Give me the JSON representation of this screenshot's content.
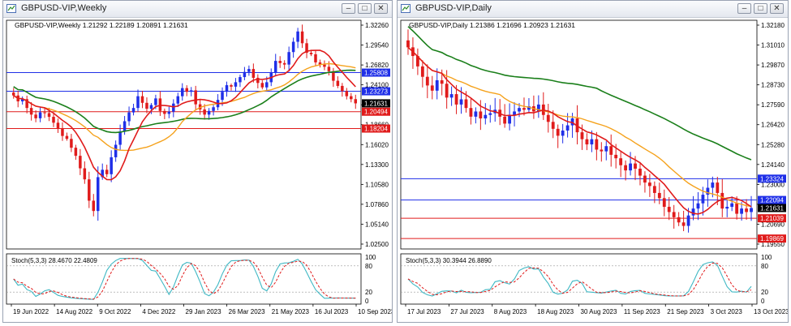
{
  "windows": [
    {
      "id": "weekly",
      "title": "GBPUSD-VIP,Weekly",
      "info": "GBPUSD-VIP,Weekly  1.21292 1.22189 1.20891 1.21631",
      "osc_label": "Stoch(5,3,3) 28.4670 22.4809",
      "colors": {
        "bull": "#1f2fe8",
        "bear": "#e01b1b",
        "ma_fast": "#e01b1b",
        "ma_mid": "#f5a21c",
        "ma_slow": "#1a7f1a",
        "stoch_main": "#3fb8c4",
        "stoch_signal": "#e01b1b",
        "hline_blue": "#1f2fe8",
        "hline_red": "#e01b1b"
      },
      "chart_data": {
        "type": "candlestick",
        "y_ticks": [
          "1.32260",
          "1.29540",
          "1.26820",
          "1.24100",
          "1.21380",
          "1.18660",
          "1.16020",
          "1.13300",
          "1.10580",
          "1.07860",
          "1.05140",
          "1.02500"
        ],
        "ylim": [
          1.025,
          1.3226
        ],
        "x_ticks": [
          "19 Jun 2022",
          "14 Aug 2022",
          "9 Oct 2022",
          "4 Dec 2022",
          "29 Jan 2023",
          "26 Mar 2023",
          "21 May 2023",
          "16 Jul 2023",
          "10 Sep 2023"
        ],
        "closes": [
          1.227,
          1.219,
          1.222,
          1.21,
          1.201,
          1.196,
          1.204,
          1.203,
          1.198,
          1.19,
          1.182,
          1.172,
          1.168,
          1.156,
          1.145,
          1.128,
          1.113,
          1.084,
          1.07,
          1.116,
          1.126,
          1.12,
          1.143,
          1.16,
          1.178,
          1.192,
          1.204,
          1.21,
          1.226,
          1.217,
          1.209,
          1.214,
          1.223,
          1.206,
          1.202,
          1.205,
          1.216,
          1.226,
          1.237,
          1.232,
          1.234,
          1.215,
          1.208,
          1.201,
          1.206,
          1.211,
          1.221,
          1.232,
          1.241,
          1.239,
          1.245,
          1.252,
          1.259,
          1.263,
          1.251,
          1.244,
          1.238,
          1.245,
          1.258,
          1.274,
          1.271,
          1.269,
          1.286,
          1.3,
          1.314,
          1.298,
          1.285,
          1.283,
          1.272,
          1.269,
          1.266,
          1.26,
          1.247,
          1.24,
          1.233,
          1.226,
          1.222,
          1.2163
        ],
        "hlines": [
          {
            "value": 1.25808,
            "label": "1.25808",
            "color": "#1f2fe8"
          },
          {
            "value": 1.23273,
            "label": "1.23273",
            "color": "#1f2fe8"
          },
          {
            "value": 1.21631,
            "label": "1.21631",
            "color": "#000000"
          },
          {
            "value": 1.20494,
            "label": "1.20494",
            "color": "#e01b1b"
          },
          {
            "value": 1.18204,
            "label": "1.18204",
            "color": "#e01b1b"
          }
        ],
        "osc_levels": [
          "100",
          "80",
          "20",
          "0"
        ]
      }
    },
    {
      "id": "daily",
      "title": "GBPUSD-VIP,Daily",
      "info": "GBPUSD-VIP,Daily  1.21386 1.21696 1.20923 1.21631",
      "osc_label": "Stoch(5,3,3) 30.3944 26.8890",
      "colors": {
        "bull": "#1f2fe8",
        "bear": "#e01b1b",
        "ma_fast": "#e01b1b",
        "ma_mid": "#f5a21c",
        "ma_slow": "#1a7f1a",
        "stoch_main": "#3fb8c4",
        "stoch_signal": "#e01b1b",
        "hline_blue": "#1f2fe8",
        "hline_red": "#e01b1b"
      },
      "chart_data": {
        "type": "candlestick",
        "y_ticks": [
          "1.32180",
          "1.31010",
          "1.29870",
          "1.28730",
          "1.27590",
          "1.26420",
          "1.25280",
          "1.24140",
          "1.23000",
          "1.21860",
          "1.20690",
          "1.19550"
        ],
        "ylim": [
          1.1955,
          1.3218
        ],
        "x_ticks": [
          "17 Jul 2023",
          "27 Jul 2023",
          "8 Aug 2023",
          "18 Aug 2023",
          "30 Aug 2023",
          "11 Sep 2023",
          "21 Sep 2023",
          "3 Oct 2023",
          "13 Oct 2023"
        ],
        "closes": [
          1.309,
          1.304,
          1.298,
          1.292,
          1.287,
          1.284,
          1.29,
          1.288,
          1.28,
          1.282,
          1.276,
          1.279,
          1.274,
          1.269,
          1.272,
          1.268,
          1.27,
          1.271,
          1.273,
          1.269,
          1.265,
          1.27,
          1.272,
          1.274,
          1.273,
          1.275,
          1.272,
          1.276,
          1.27,
          1.266,
          1.262,
          1.258,
          1.261,
          1.264,
          1.268,
          1.26,
          1.256,
          1.253,
          1.256,
          1.25,
          1.249,
          1.252,
          1.247,
          1.245,
          1.241,
          1.238,
          1.242,
          1.239,
          1.235,
          1.231,
          1.229,
          1.225,
          1.222,
          1.217,
          1.214,
          1.211,
          1.208,
          1.206,
          1.212,
          1.216,
          1.219,
          1.224,
          1.228,
          1.231,
          1.225,
          1.216,
          1.217,
          1.219,
          1.213,
          1.216,
          1.214,
          1.2163
        ],
        "hlines": [
          {
            "value": 1.23324,
            "label": "1.23324",
            "color": "#1f2fe8"
          },
          {
            "value": 1.22094,
            "label": "1.22094",
            "color": "#1f2fe8"
          },
          {
            "value": 1.21631,
            "label": "1.21631",
            "color": "#000000"
          },
          {
            "value": 1.21039,
            "label": "1.21039",
            "color": "#e01b1b"
          },
          {
            "value": 1.19869,
            "label": "1.19869",
            "color": "#e01b1b"
          }
        ],
        "osc_levels": [
          "100",
          "80",
          "20",
          "0"
        ]
      }
    }
  ]
}
